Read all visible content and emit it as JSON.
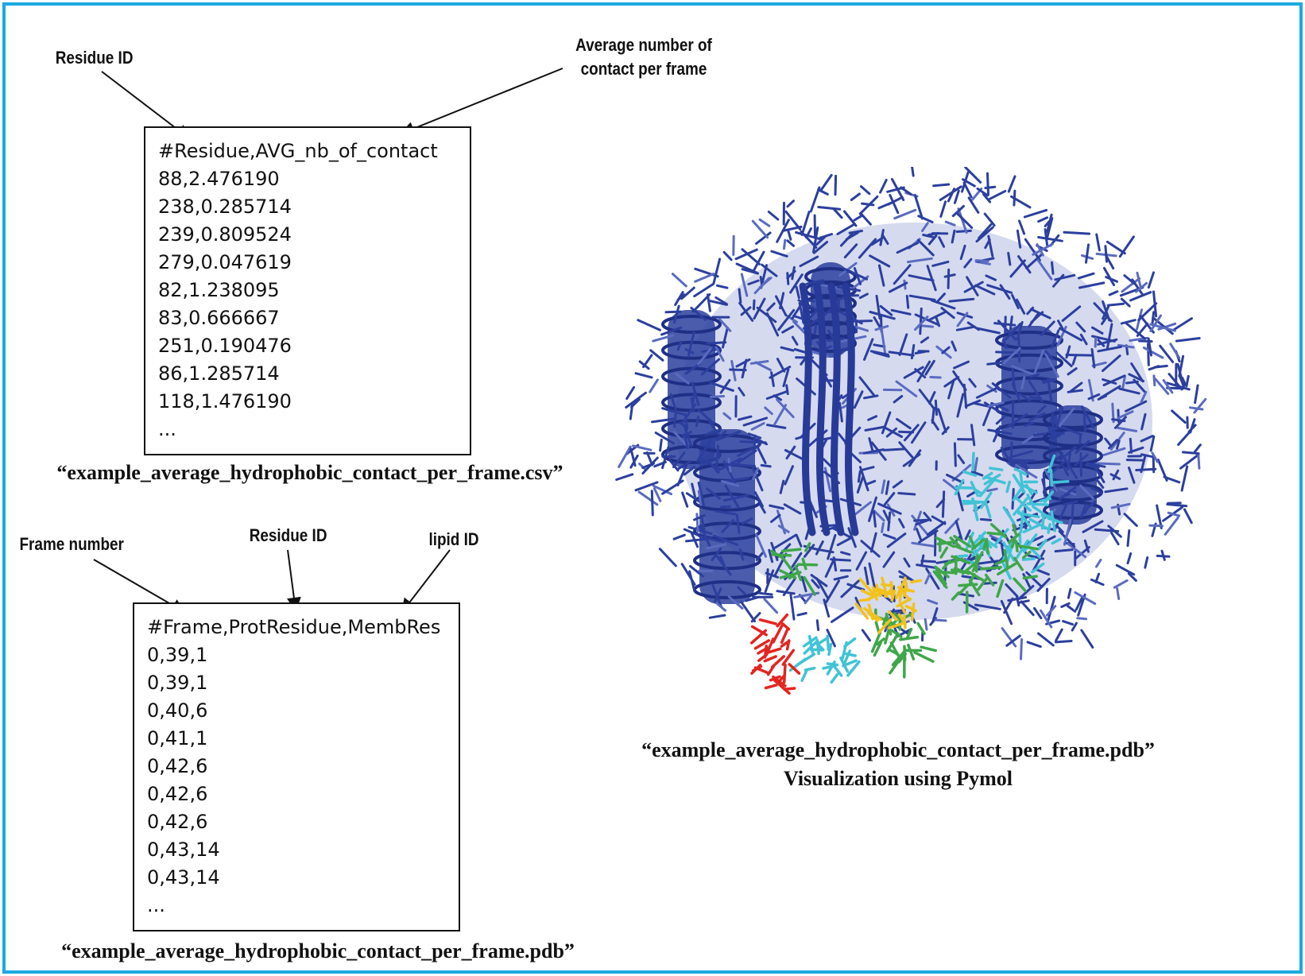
{
  "csv_section": {
    "label_residue_id": "Residue ID",
    "label_avg_line1": "Average number of",
    "label_avg_line2": "contact per frame",
    "lines": [
      "#Residue,AVG_nb_of_contact",
      "88,2.476190",
      "238,0.285714",
      "239,0.809524",
      "279,0.047619",
      "82,1.238095",
      "83,0.666667",
      "251,0.190476",
      "86,1.285714",
      "118,1.476190",
      "..."
    ],
    "caption": "“example_average_hydrophobic_contact_per_frame.csv”"
  },
  "frame_section": {
    "label_frame_number": "Frame number",
    "label_residue_id": "Residue ID",
    "label_lipid_id": "lipid ID",
    "lines": [
      "#Frame,ProtResidue,MembRes",
      "0,39,1",
      "0,39,1",
      "0,40,6",
      "0,41,1",
      "0,42,6",
      "0,42,6",
      "0,42,6",
      "0,43,14",
      "0,43,14",
      "..."
    ],
    "caption": "“example_average_hydrophobic_contact_per_frame.pdb”"
  },
  "visualization": {
    "caption_line1": "“example_average_hydrophobic_contact_per_frame.pdb”",
    "caption_line2": "Visualization using Pymol"
  },
  "colors": {
    "border": "#1aa9e1",
    "protein": "#2c3f9e",
    "protein_light": "#5a6bc0",
    "red": "#e52420",
    "cyan": "#41c3d6",
    "green": "#3fa64a",
    "yellow": "#f2c21b"
  }
}
